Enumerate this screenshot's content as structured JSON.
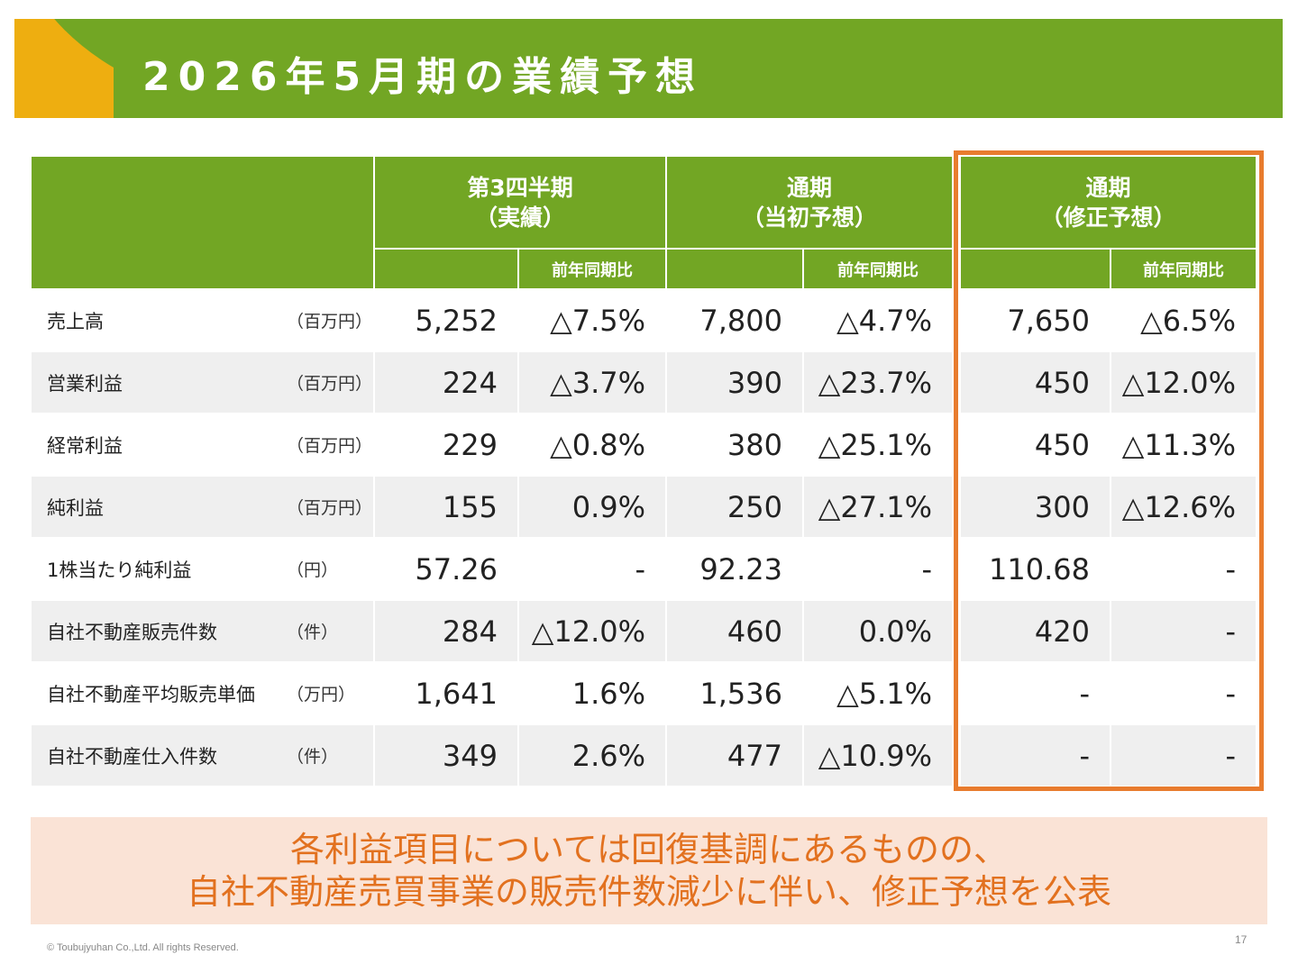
{
  "title": "2026年5月期の業績予想",
  "colors": {
    "header_green": "#72a624",
    "accent_orange": "#e87c2e",
    "corner_yellow": "#eeae10",
    "note_bg": "#fae3d6"
  },
  "table": {
    "groups": [
      {
        "line1": "第3四半期",
        "line2": "（実績）"
      },
      {
        "line1": "通期",
        "line2": "（当初予想）"
      },
      {
        "line1": "通期",
        "line2": "（修正予想）"
      }
    ],
    "yoy_label": "前年同期比",
    "rows": [
      {
        "label": "売上高",
        "unit": "（百万円）",
        "values": [
          "5,252",
          "△7.5%",
          "7,800",
          "△4.7%",
          "7,650",
          "△6.5%"
        ]
      },
      {
        "label": "営業利益",
        "unit": "（百万円）",
        "values": [
          "224",
          "△3.7%",
          "390",
          "△23.7%",
          "450",
          "△12.0%"
        ]
      },
      {
        "label": "経常利益",
        "unit": "（百万円）",
        "values": [
          "229",
          "△0.8%",
          "380",
          "△25.1%",
          "450",
          "△11.3%"
        ]
      },
      {
        "label": "純利益",
        "unit": "（百万円）",
        "values": [
          "155",
          "0.9%",
          "250",
          "△27.1%",
          "300",
          "△12.6%"
        ]
      },
      {
        "label": "1株当たり純利益",
        "unit": "（円）",
        "values": [
          "57.26",
          "-",
          "92.23",
          "-",
          "110.68",
          "-"
        ]
      },
      {
        "label": "自社不動産販売件数",
        "unit": "（件）",
        "values": [
          "284",
          "△12.0%",
          "460",
          "0.0%",
          "420",
          "-"
        ]
      },
      {
        "label": "自社不動産平均販売単価",
        "unit": "（万円）",
        "values": [
          "1,641",
          "1.6%",
          "1,536",
          "△5.1%",
          "-",
          "-"
        ]
      },
      {
        "label": "自社不動産仕入件数",
        "unit": "（件）",
        "values": [
          "349",
          "2.6%",
          "477",
          "△10.9%",
          "-",
          "-"
        ]
      }
    ]
  },
  "note": {
    "line1": "各利益項目については回復基調にあるものの、",
    "line2": "自社不動産売買事業の販売件数減少に伴い、修正予想を公表"
  },
  "footer": {
    "copyright": "© Toubujyuhan Co.,Ltd. All rights Reserved.",
    "page": "17"
  }
}
